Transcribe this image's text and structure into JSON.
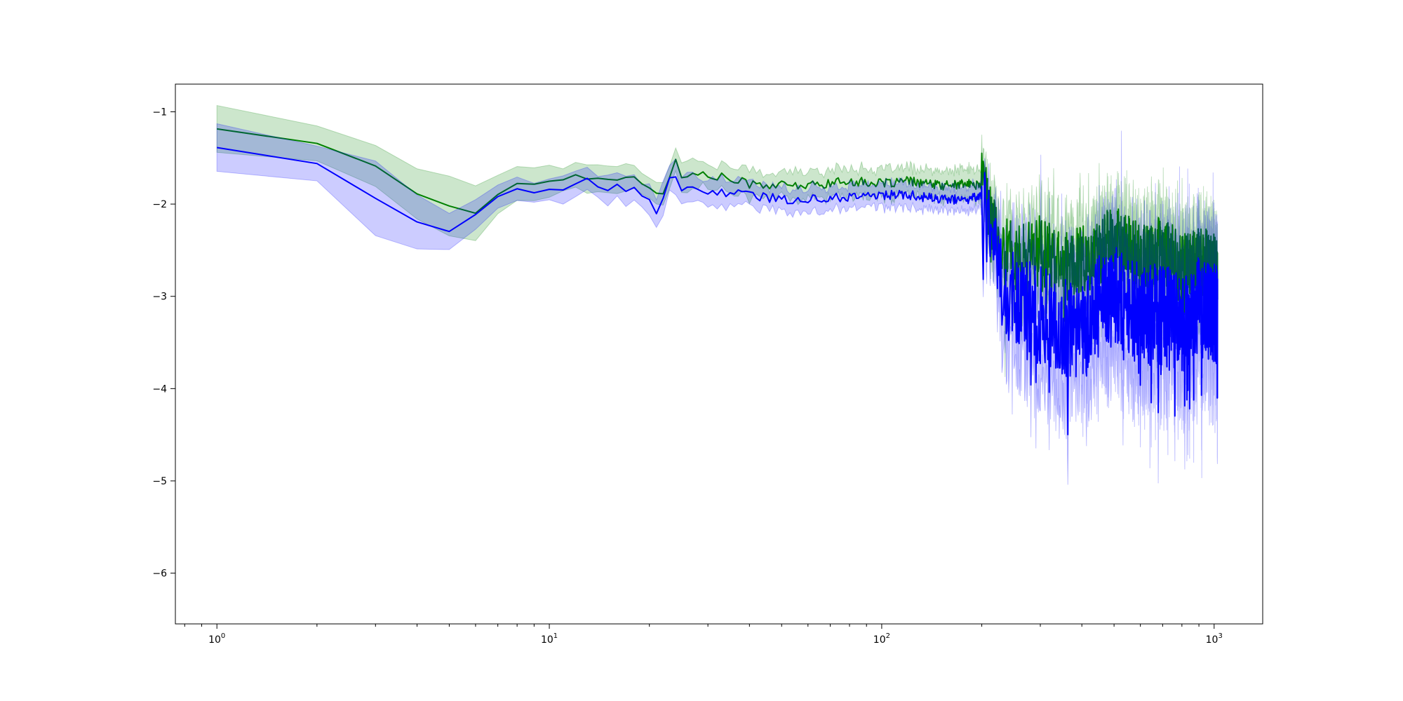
{
  "chart_data": {
    "type": "line",
    "xscale": "log",
    "xlim": [
      0.75,
      1400
    ],
    "ylim": [
      -6.55,
      -0.7
    ],
    "grid": false,
    "legend": "none",
    "x_ticks": [
      {
        "value": 1,
        "base": "10",
        "exp": "0"
      },
      {
        "value": 10,
        "base": "10",
        "exp": "1"
      },
      {
        "value": 100,
        "base": "10",
        "exp": "2"
      },
      {
        "value": 1000,
        "base": "10",
        "exp": "3"
      }
    ],
    "y_ticks": [
      {
        "value": -1,
        "label": "−1"
      },
      {
        "value": -2,
        "label": "−2"
      },
      {
        "value": -3,
        "label": "−3"
      },
      {
        "value": -4,
        "label": "−4"
      },
      {
        "value": -5,
        "label": "−5"
      },
      {
        "value": -6,
        "label": "−6"
      }
    ],
    "series": [
      {
        "color": "#008000",
        "band_color": "#008000",
        "band_opacity": 0.2,
        "anchors_x": [
          1,
          2,
          3,
          4,
          5,
          6,
          7,
          8,
          10,
          12,
          14,
          16,
          18,
          20,
          21,
          22,
          24,
          25,
          30,
          40,
          50,
          60,
          80,
          100,
          120,
          150,
          180,
          200,
          210,
          230,
          260,
          300,
          350,
          400,
          450,
          500,
          600,
          700,
          800,
          900,
          1000,
          1024
        ],
        "anchors_y": [
          -1.17,
          -1.34,
          -1.6,
          -1.9,
          -2.0,
          -2.1,
          -1.88,
          -1.8,
          -1.75,
          -1.7,
          -1.7,
          -1.73,
          -1.72,
          -1.8,
          -1.9,
          -1.85,
          -1.55,
          -1.7,
          -1.68,
          -1.78,
          -1.8,
          -1.8,
          -1.75,
          -1.78,
          -1.75,
          -1.8,
          -1.78,
          -1.8,
          -2.1,
          -2.5,
          -2.6,
          -2.5,
          -2.7,
          -2.6,
          -2.5,
          -2.4,
          -2.6,
          -2.5,
          -2.7,
          -2.6,
          -2.7,
          -2.7
        ],
        "band_half_width": [
          0.21,
          0.2,
          0.23,
          0.3,
          0.3,
          0.3,
          0.25,
          0.18,
          0.15,
          0.13,
          0.13,
          0.13,
          0.13,
          0.13,
          0.13,
          0.13,
          0.15,
          0.15,
          0.13,
          0.13,
          0.14,
          0.14,
          0.14,
          0.14,
          0.14,
          0.14,
          0.15,
          0.17,
          0.2,
          0.3,
          0.35,
          0.35,
          0.35,
          0.35,
          0.35,
          0.35,
          0.35,
          0.35,
          0.35,
          0.35,
          0.35,
          0.35
        ],
        "noise": {
          "low": 0.03,
          "mid": 0.05,
          "high": 0.38
        }
      },
      {
        "color": "#0000ff",
        "band_color": "#0000ff",
        "band_opacity": 0.2,
        "anchors_x": [
          1,
          2,
          3,
          4,
          5,
          6,
          7,
          8,
          9,
          10,
          12,
          13,
          14,
          16,
          18,
          20,
          21,
          22,
          23,
          24,
          25,
          30,
          40,
          50,
          60,
          80,
          100,
          120,
          150,
          180,
          200,
          210,
          230,
          260,
          300,
          350,
          400,
          450,
          500,
          600,
          700,
          800,
          900,
          1000,
          1024
        ],
        "anchors_y": [
          -1.37,
          -1.57,
          -1.9,
          -2.17,
          -2.3,
          -2.1,
          -1.95,
          -1.87,
          -1.9,
          -1.85,
          -1.78,
          -1.75,
          -1.83,
          -1.8,
          -1.85,
          -2.0,
          -2.12,
          -1.95,
          -1.7,
          -1.75,
          -1.85,
          -1.85,
          -1.9,
          -1.95,
          -1.95,
          -1.92,
          -1.9,
          -1.9,
          -1.95,
          -1.95,
          -1.9,
          -2.3,
          -2.9,
          -3.1,
          -3.2,
          -3.3,
          -3.4,
          -3.1,
          -3.0,
          -3.2,
          -3.2,
          -3.3,
          -3.1,
          -3.2,
          -3.2
        ],
        "band_half_width": [
          0.2,
          0.23,
          0.33,
          0.25,
          0.2,
          0.15,
          0.14,
          0.12,
          0.12,
          0.12,
          0.12,
          0.12,
          0.13,
          0.13,
          0.13,
          0.14,
          0.18,
          0.18,
          0.16,
          0.15,
          0.15,
          0.13,
          0.12,
          0.12,
          0.12,
          0.12,
          0.12,
          0.12,
          0.12,
          0.12,
          0.14,
          0.25,
          0.45,
          0.55,
          0.55,
          0.6,
          0.6,
          0.6,
          0.6,
          0.6,
          0.6,
          0.6,
          0.6,
          0.6,
          0.6
        ],
        "noise": {
          "low": 0.04,
          "mid": 0.05,
          "high": 0.55
        }
      }
    ]
  }
}
